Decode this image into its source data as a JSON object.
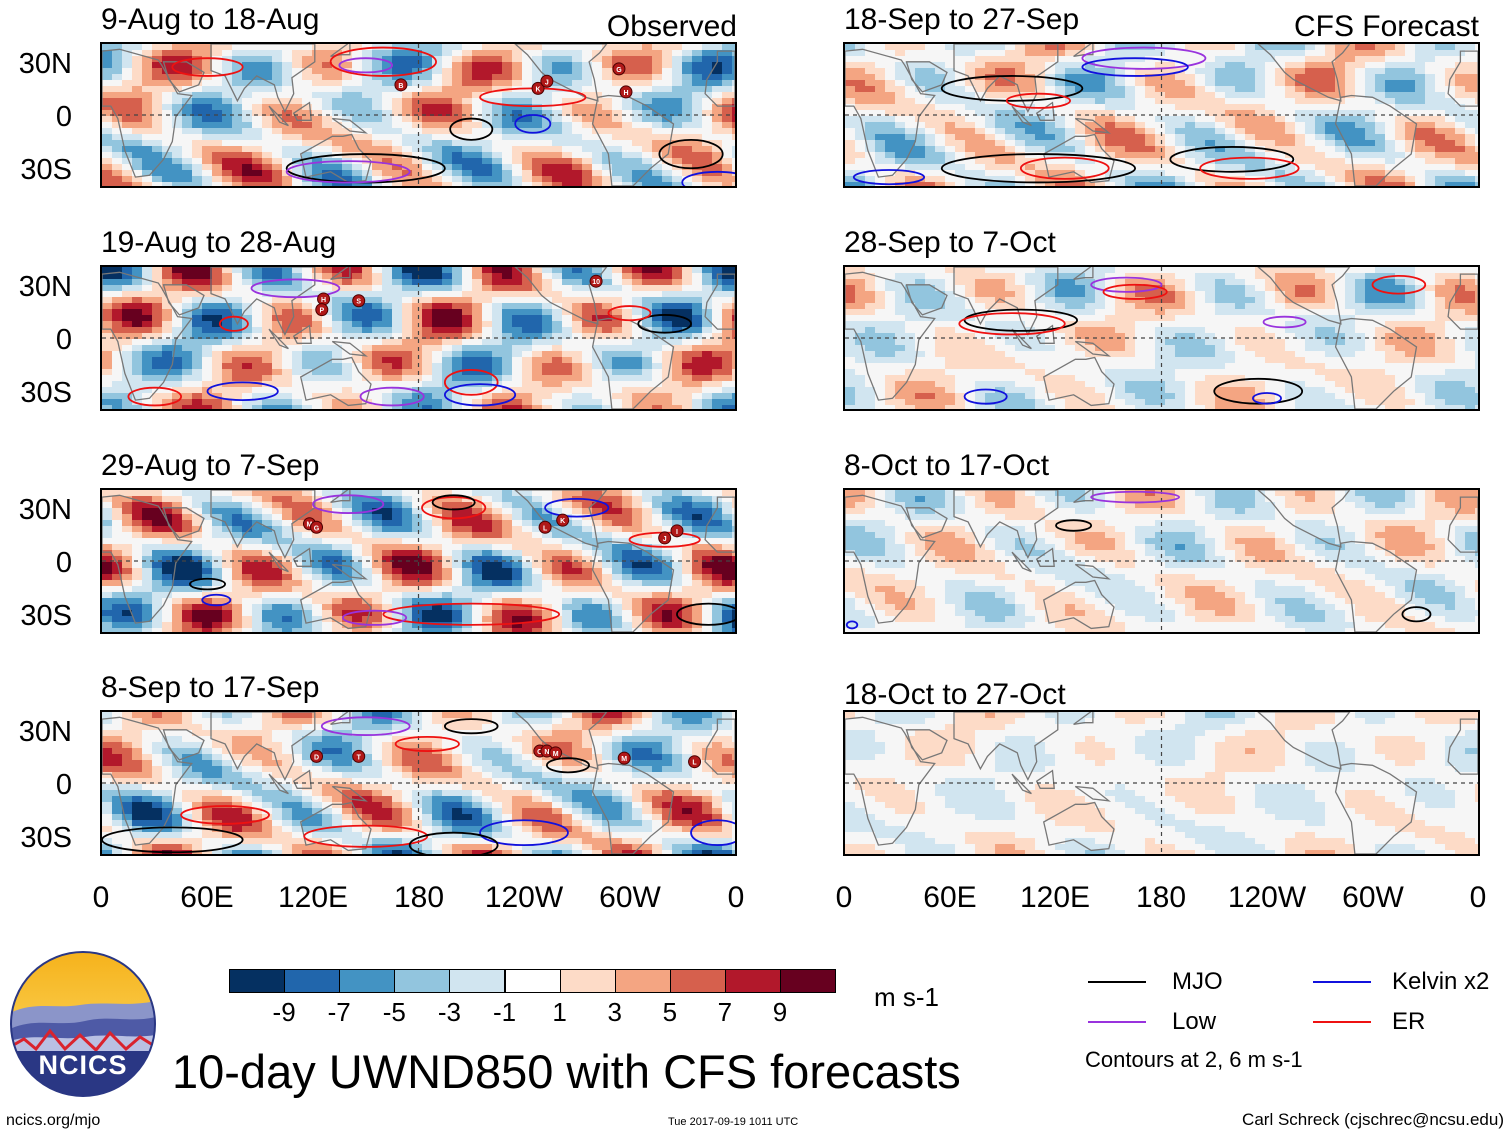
{
  "chart_data": {
    "type": "heatmap",
    "title": "10-day UWND850 with CFS forecasts",
    "variable": "UWND850",
    "units": "m s-1",
    "lat_labels": [
      "30N",
      "0",
      "30S"
    ],
    "lon_labels": [
      "0",
      "60E",
      "120E",
      "180",
      "120W",
      "60W",
      "0"
    ],
    "observed_label": "Observed",
    "forecast_label": "CFS Forecast",
    "observed_panels": [
      {
        "period": "9-Aug to 18-Aug",
        "storms": [
          {
            "name": "B",
            "lon": 170,
            "lat": 17
          },
          {
            "name": "K",
            "lon": 248,
            "lat": 15
          },
          {
            "name": "J",
            "lon": 253,
            "lat": 19
          },
          {
            "name": "G",
            "lon": 294,
            "lat": 26
          },
          {
            "name": "H",
            "lon": 298,
            "lat": 13
          }
        ]
      },
      {
        "period": "19-Aug to 28-Aug",
        "storms": [
          {
            "name": "H",
            "lon": 126,
            "lat": 22
          },
          {
            "name": "P",
            "lon": 125,
            "lat": 16
          },
          {
            "name": "S",
            "lon": 146,
            "lat": 21
          },
          {
            "name": "10",
            "lon": 281,
            "lat": 32
          }
        ]
      },
      {
        "period": "29-Aug to 7-Sep",
        "storms": [
          {
            "name": "M",
            "lon": 118,
            "lat": 21
          },
          {
            "name": "G",
            "lon": 122,
            "lat": 19
          },
          {
            "name": "L",
            "lon": 252,
            "lat": 19
          },
          {
            "name": "K",
            "lon": 262,
            "lat": 23
          },
          {
            "name": "J",
            "lon": 320,
            "lat": 13
          },
          {
            "name": "I",
            "lon": 327,
            "lat": 17
          }
        ]
      },
      {
        "period": "8-Sep to 17-Sep",
        "storms": [
          {
            "name": "D",
            "lon": 122,
            "lat": 15
          },
          {
            "name": "T",
            "lon": 146,
            "lat": 15
          },
          {
            "name": "O",
            "lon": 249,
            "lat": 18
          },
          {
            "name": "N",
            "lon": 253,
            "lat": 18
          },
          {
            "name": "M",
            "lon": 258,
            "lat": 17
          },
          {
            "name": "M",
            "lon": 297,
            "lat": 14
          },
          {
            "name": "L",
            "lon": 337,
            "lat": 12
          }
        ]
      }
    ],
    "forecast_panels": [
      {
        "period": "18-Sep to 27-Sep"
      },
      {
        "period": "28-Sep to 7-Oct"
      },
      {
        "period": "8-Oct to 17-Oct"
      },
      {
        "period": "18-Oct to 27-Oct"
      }
    ],
    "colorbar": {
      "ticks": [
        "-9",
        "-7",
        "-5",
        "-3",
        "-1",
        "1",
        "3",
        "5",
        "7",
        "9"
      ],
      "levels": [
        -9,
        -7,
        -5,
        -3,
        -1,
        1,
        3,
        5,
        7,
        9
      ],
      "colors": [
        "#053061",
        "#2166ac",
        "#4393c3",
        "#92c5de",
        "#d1e5f0",
        "#ffffff",
        "#fddbc7",
        "#f4a582",
        "#d6604d",
        "#b2182b",
        "#67001f"
      ],
      "units_label": "m s-1"
    },
    "legend": [
      {
        "label": "MJO",
        "color": "#000000"
      },
      {
        "label": "Kelvin x2",
        "color": "#1111dd"
      },
      {
        "label": "Low",
        "color": "#9933dd"
      },
      {
        "label": "ER",
        "color": "#ee1111"
      }
    ],
    "contour_note": "Contours at 2, 6 m s-1"
  },
  "footer": {
    "logo_text": "NCICS",
    "url": "ncics.org/mjo",
    "timestamp": "Tue 2017-09-19 1011 UTC",
    "credit": "Carl Schreck (cjschrec@ncsu.edu)"
  }
}
